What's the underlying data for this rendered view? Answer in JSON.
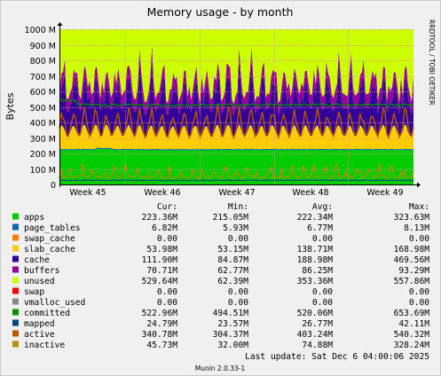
{
  "chart_data": {
    "type": "area",
    "title": "Memory usage - by month",
    "ylabel": "Bytes",
    "side_text": "RRDTOOL / TOBI OETIKER",
    "footer": "Munin 2.0.33-1",
    "ylim": [
      0,
      1000
    ],
    "y_unit": "M",
    "y_ticks": [
      "0",
      "100 M",
      "200 M",
      "300 M",
      "400 M",
      "500 M",
      "600 M",
      "700 M",
      "800 M",
      "900 M",
      "1000 M"
    ],
    "x_ticks": [
      "Week 45",
      "Week 46",
      "Week 47",
      "Week 48",
      "Week 49"
    ],
    "grid": true,
    "legend_columns": [
      "Cur:",
      "Min:",
      "Avg:",
      "Max:"
    ],
    "last_update": "Last update:  Sat Dec  6 04:00:06 2025",
    "colors": {
      "apps": "#00CC00",
      "page_tables": "#0066B3",
      "swap_cache": "#FF8000",
      "slab_cache": "#FFCC00",
      "cache": "#330099",
      "buffers": "#990099",
      "unused": "#CCFF00",
      "swap": "#FF0000",
      "vmalloc_used": "#888888",
      "committed": "#008F00",
      "mapped": "#00487D",
      "active": "#B35A00",
      "inactive": "#B38F00"
    },
    "series": [
      {
        "name": "apps",
        "kind": "area",
        "cur": "223.36M",
        "min": "215.05M",
        "avg": "222.34M",
        "max": "323.63M"
      },
      {
        "name": "page_tables",
        "kind": "area",
        "cur": "6.82M",
        "min": "5.93M",
        "avg": "6.77M",
        "max": "8.13M"
      },
      {
        "name": "swap_cache",
        "kind": "area",
        "cur": "0.00",
        "min": "0.00",
        "avg": "0.00",
        "max": "0.00"
      },
      {
        "name": "slab_cache",
        "kind": "area",
        "cur": "53.98M",
        "min": "53.15M",
        "avg": "138.71M",
        "max": "168.98M"
      },
      {
        "name": "cache",
        "kind": "area",
        "cur": "111.90M",
        "min": "84.87M",
        "avg": "188.98M",
        "max": "469.56M"
      },
      {
        "name": "buffers",
        "kind": "area",
        "cur": "70.71M",
        "min": "62.77M",
        "avg": "86.25M",
        "max": "93.29M"
      },
      {
        "name": "unused",
        "kind": "area",
        "cur": "529.64M",
        "min": "62.39M",
        "avg": "353.36M",
        "max": "557.86M"
      },
      {
        "name": "swap",
        "kind": "area",
        "cur": "0.00",
        "min": "0.00",
        "avg": "0.00",
        "max": "0.00"
      },
      {
        "name": "vmalloc_used",
        "kind": "area",
        "cur": "0.00",
        "min": "0.00",
        "avg": "0.00",
        "max": "0.00"
      },
      {
        "name": "committed",
        "kind": "line",
        "cur": "522.96M",
        "min": "494.51M",
        "avg": "520.06M",
        "max": "653.69M"
      },
      {
        "name": "mapped",
        "kind": "line",
        "cur": "24.79M",
        "min": "23.57M",
        "avg": "26.77M",
        "max": "42.11M"
      },
      {
        "name": "active",
        "kind": "line",
        "cur": "340.78M",
        "min": "304.37M",
        "avg": "403.24M",
        "max": "540.32M"
      },
      {
        "name": "inactive",
        "kind": "line",
        "cur": "45.73M",
        "min": "32.00M",
        "avg": "74.88M",
        "max": "328.24M"
      }
    ]
  }
}
